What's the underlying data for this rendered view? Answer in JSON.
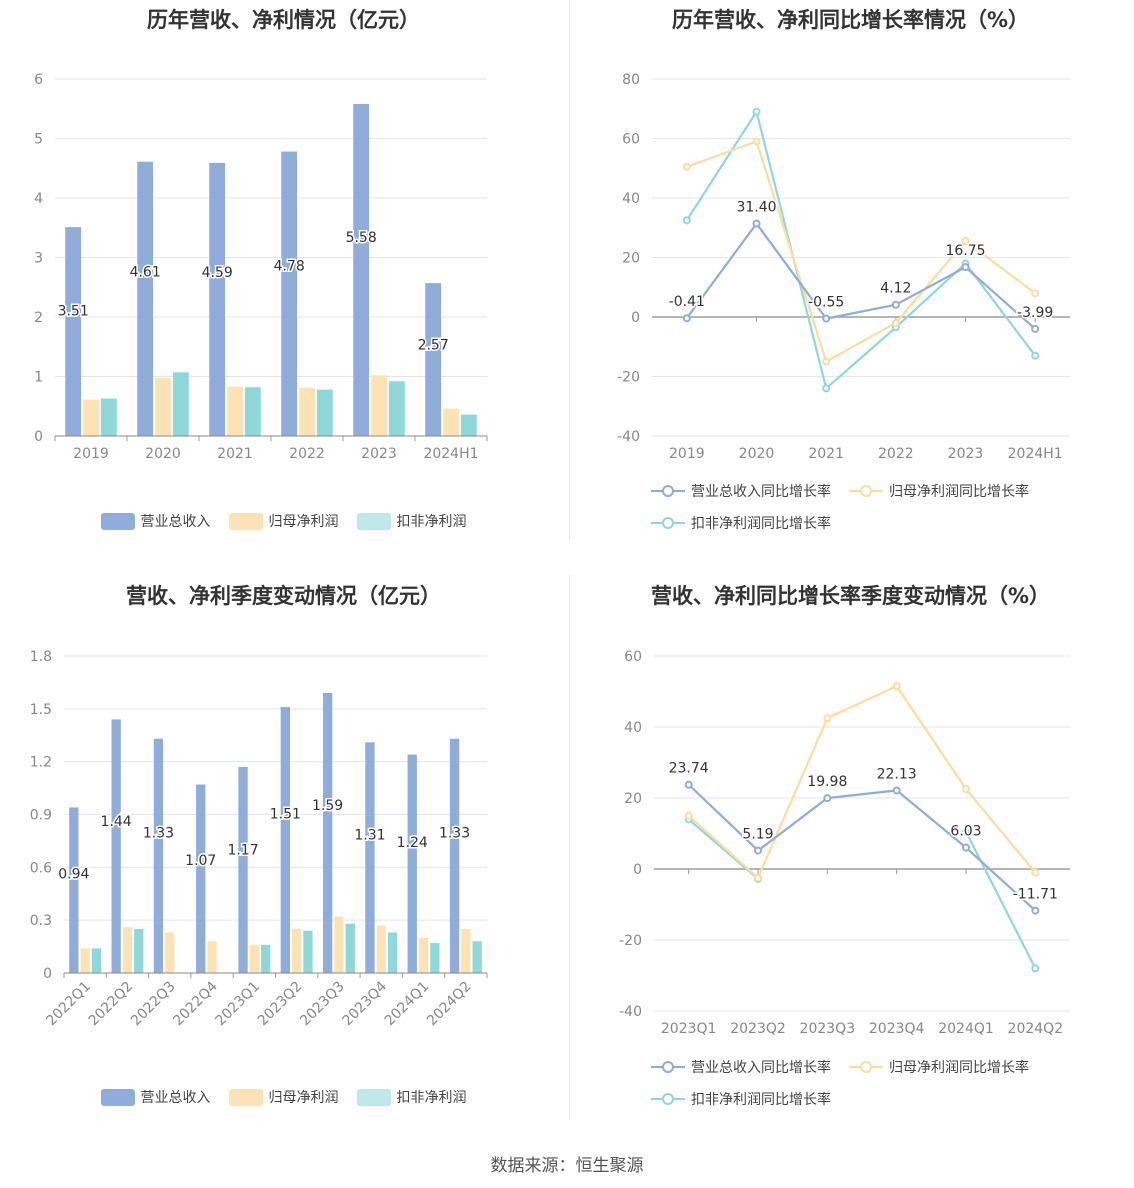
{
  "colors": {
    "revenue": "#8eadd9",
    "net_profit": "#fde3b4",
    "deducted_profit": "#8fd8da",
    "revenue_line": "#8eadd9",
    "net_line": "#fddca0",
    "deducted_line": "#8fd8da"
  },
  "source": "数据来源：恒生聚源",
  "chart_data": [
    {
      "type": "bar",
      "title": "历年营收、净利情况（亿元）",
      "categories": [
        "2019",
        "2020",
        "2021",
        "2022",
        "2023",
        "2024H1"
      ],
      "ylim": [
        0,
        6
      ],
      "yticks": [
        0,
        1,
        2,
        3,
        4,
        5,
        6
      ],
      "series": [
        {
          "name": "营业总收入",
          "values": [
            3.51,
            4.61,
            4.59,
            4.78,
            5.58,
            2.57
          ],
          "labels": [
            "3.51",
            "4.61",
            "4.59",
            "4.78",
            "5.58",
            "2.57"
          ]
        },
        {
          "name": "归母净利润",
          "values": [
            0.61,
            0.98,
            0.83,
            0.81,
            1.02,
            0.46
          ]
        },
        {
          "name": "扣非净利润",
          "values": [
            0.63,
            1.07,
            0.82,
            0.78,
            0.92,
            0.36
          ]
        }
      ],
      "legend": [
        "营业总收入",
        "归母净利润",
        "扣非净利润"
      ],
      "legend_position": "bottom",
      "grid": true
    },
    {
      "type": "line",
      "title": "历年营收、净利同比增长率情况（%）",
      "categories": [
        "2019",
        "2020",
        "2021",
        "2022",
        "2023",
        "2024H1"
      ],
      "ylim": [
        -40,
        80
      ],
      "yticks": [
        -40,
        -20,
        0,
        20,
        40,
        60,
        80
      ],
      "series": [
        {
          "name": "营业总收入同比增长率",
          "values": [
            -0.41,
            31.4,
            -0.55,
            4.12,
            16.75,
            -3.99
          ],
          "labels": [
            "-0.41",
            "31.40",
            "-0.55",
            "4.12",
            "16.75",
            "-3.99"
          ]
        },
        {
          "name": "归母净利润同比增长率",
          "values": [
            50.5,
            59.0,
            -15.0,
            -2.0,
            25.5,
            8.0
          ]
        },
        {
          "name": "扣非净利润同比增长率",
          "values": [
            32.5,
            69.0,
            -24.0,
            -3.5,
            18.0,
            -13.0
          ]
        }
      ],
      "legend": [
        "营业总收入同比增长率",
        "归母净利润同比增长率",
        "扣非净利润同比增长率"
      ],
      "legend_position": "bottom",
      "grid": true
    },
    {
      "type": "bar",
      "title": "营收、净利季度变动情况（亿元）",
      "categories": [
        "2022Q1",
        "2022Q2",
        "2022Q3",
        "2022Q4",
        "2023Q1",
        "2023Q2",
        "2023Q3",
        "2023Q4",
        "2024Q1",
        "2024Q2"
      ],
      "ylim": [
        0,
        1.8
      ],
      "yticks": [
        "0",
        "0.3",
        "0.6",
        "0.9",
        "1.2",
        "1.5",
        "1.8"
      ],
      "series": [
        {
          "name": "营业总收入",
          "values": [
            0.94,
            1.44,
            1.33,
            1.07,
            1.17,
            1.51,
            1.59,
            1.31,
            1.24,
            1.33
          ],
          "labels": [
            "0.94",
            "1.44",
            "1.33",
            "1.07",
            "1.17",
            "1.51",
            "1.59",
            "1.31",
            "1.24",
            "1.33"
          ]
        },
        {
          "name": "归母净利润",
          "values": [
            0.14,
            0.26,
            0.23,
            0.18,
            0.16,
            0.25,
            0.32,
            0.27,
            0.2,
            0.25
          ]
        },
        {
          "name": "扣非净利润",
          "values": [
            0.14,
            0.25,
            0.0,
            0.0,
            0.16,
            0.24,
            0.28,
            0.23,
            0.17,
            0.18
          ]
        }
      ],
      "legend": [
        "营业总收入",
        "归母净利润",
        "扣非净利润"
      ],
      "legend_position": "bottom",
      "grid": true
    },
    {
      "type": "line",
      "title": "营收、净利同比增长率季度变动情况（%）",
      "categories": [
        "2023Q1",
        "2023Q2",
        "2023Q3",
        "2023Q4",
        "2024Q1",
        "2024Q2"
      ],
      "ylim": [
        -40,
        60
      ],
      "yticks": [
        -40,
        -20,
        0,
        20,
        40,
        60
      ],
      "series": [
        {
          "name": "营业总收入同比增长率",
          "values": [
            23.74,
            5.19,
            19.98,
            22.13,
            6.03,
            -11.71
          ],
          "labels": [
            "23.74",
            "5.19",
            "19.98",
            "22.13",
            "6.03",
            "-11.71"
          ]
        },
        {
          "name": "归母净利润同比增长率",
          "values": [
            15.0,
            -2.5,
            42.5,
            51.5,
            22.5,
            -1.0
          ]
        },
        {
          "name": "扣非净利润同比增长率",
          "values": [
            14.0,
            -2.8,
            null,
            null,
            10.5,
            -28.0
          ]
        }
      ],
      "legend": [
        "营业总收入同比增长率",
        "归母净利润同比增长率",
        "扣非净利润同比增长率"
      ],
      "legend_position": "bottom",
      "grid": true
    }
  ]
}
